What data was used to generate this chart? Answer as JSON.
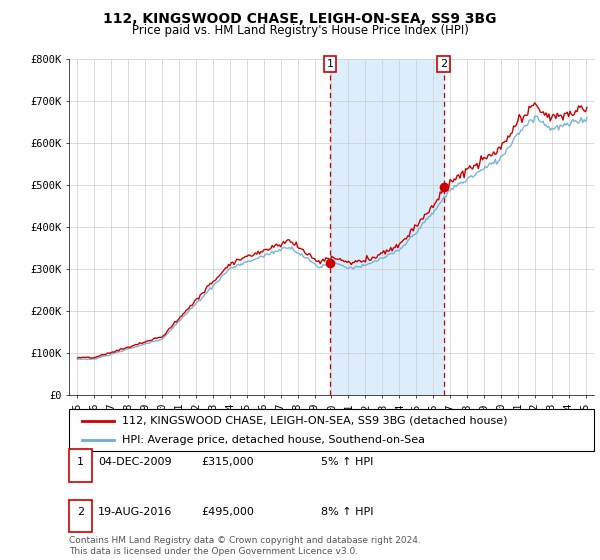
{
  "title": "112, KINGSWOOD CHASE, LEIGH-ON-SEA, SS9 3BG",
  "subtitle": "Price paid vs. HM Land Registry's House Price Index (HPI)",
  "legend_line1": "112, KINGSWOOD CHASE, LEIGH-ON-SEA, SS9 3BG (detached house)",
  "legend_line2": "HPI: Average price, detached house, Southend-on-Sea",
  "transaction1_date": "04-DEC-2009",
  "transaction1_price": "£315,000",
  "transaction1_hpi": "5% ↑ HPI",
  "transaction2_date": "19-AUG-2016",
  "transaction2_price": "£495,000",
  "transaction2_hpi": "8% ↑ HPI",
  "footnote": "Contains HM Land Registry data © Crown copyright and database right 2024.\nThis data is licensed under the Open Government Licence v3.0.",
  "vline1_x": 2009.92,
  "vline2_x": 2016.63,
  "marker1_y": 315000,
  "marker2_y": 495000,
  "ylim": [
    0,
    800000
  ],
  "xlim_left": 1994.5,
  "xlim_right": 2025.5,
  "hpi_color": "#6baed6",
  "price_color": "#cc0000",
  "vline_color": "#cc0000",
  "vline2_color": "#cc0000",
  "shaded_color": "#dceefb",
  "grid_color": "#cccccc",
  "title_fontsize": 10,
  "subtitle_fontsize": 8.5,
  "tick_fontsize": 7.5,
  "legend_fontsize": 8,
  "footnote_fontsize": 6.5
}
